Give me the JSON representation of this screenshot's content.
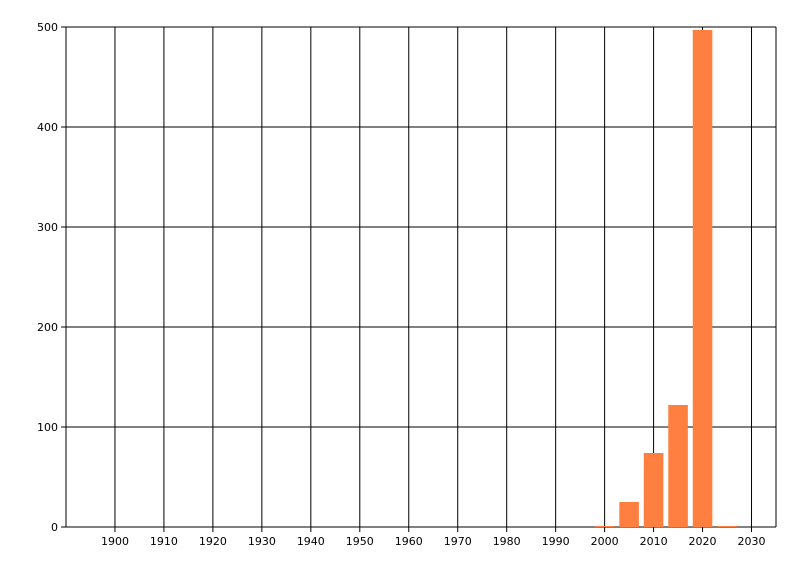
{
  "chart_data": {
    "type": "bar",
    "title": "",
    "xlabel": "",
    "ylabel": "",
    "x": [
      2000,
      2005,
      2010,
      2015,
      2020,
      2025
    ],
    "values": [
      1,
      25,
      74,
      122,
      497,
      1
    ],
    "bar_width_years": 4,
    "xlim": [
      1890,
      2035
    ],
    "ylim": [
      0,
      500
    ],
    "xticks": [
      1900,
      1910,
      1920,
      1930,
      1940,
      1950,
      1960,
      1970,
      1980,
      1990,
      2000,
      2010,
      2020,
      2030
    ],
    "yticks": [
      0,
      100,
      200,
      300,
      400,
      500
    ],
    "grid": true,
    "bar_color": "#FF7F40"
  }
}
